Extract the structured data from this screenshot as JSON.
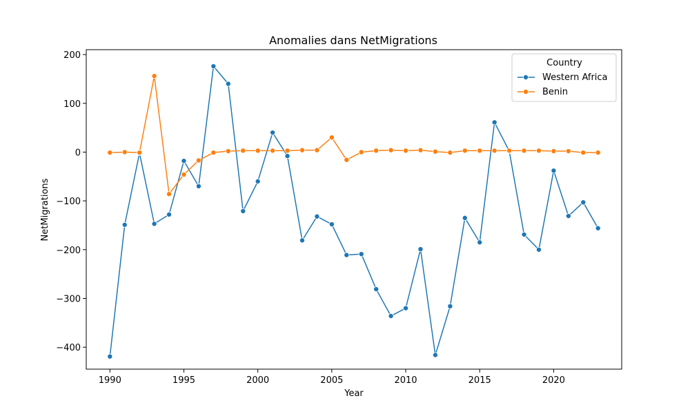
{
  "chart_data": {
    "type": "line",
    "title": "Anomalies dans NetMigrations",
    "xlabel": "Year",
    "ylabel": "NetMigrations",
    "xlim": [
      1988.4,
      2024.6
    ],
    "ylim": [
      -445,
      210
    ],
    "x_ticks": [
      1990,
      1995,
      2000,
      2005,
      2010,
      2015,
      2020
    ],
    "y_ticks": [
      200,
      100,
      0,
      -100,
      -200,
      -300,
      -400
    ],
    "y_tick_labels": [
      "200",
      "100",
      "0",
      "−100",
      "−200",
      "−300",
      "−400"
    ],
    "grid": false,
    "legend": {
      "title": "Country",
      "placement": "top-right"
    },
    "x": [
      1990,
      1991,
      1992,
      1993,
      1994,
      1995,
      1996,
      1997,
      1998,
      1999,
      2000,
      2001,
      2002,
      2003,
      2004,
      2005,
      2006,
      2007,
      2008,
      2009,
      2010,
      2011,
      2012,
      2013,
      2014,
      2015,
      2016,
      2017,
      2018,
      2019,
      2020,
      2021,
      2022,
      2023
    ],
    "series": [
      {
        "name": "Western Africa",
        "color": "#1f77b4",
        "values": [
          -419,
          -149,
          -2,
          -147,
          -128,
          -18,
          -70,
          176,
          140,
          -121,
          -60,
          40,
          -8,
          -181,
          -132,
          -148,
          -211,
          -209,
          -281,
          -336,
          -320,
          -199,
          -416,
          -316,
          -135,
          -185,
          61,
          2,
          -169,
          -200,
          -38,
          -131,
          -103,
          -156
        ]
      },
      {
        "name": "Benin",
        "color": "#ff7f0e",
        "values": [
          -1,
          0,
          -1,
          156,
          -86,
          -46,
          -17,
          -1,
          2,
          3,
          3,
          3,
          3,
          4,
          4,
          30,
          -16,
          0,
          3,
          4,
          3,
          4,
          1,
          -1,
          3,
          3,
          3,
          3,
          3,
          3,
          2,
          2,
          -1,
          -1
        ]
      }
    ]
  }
}
